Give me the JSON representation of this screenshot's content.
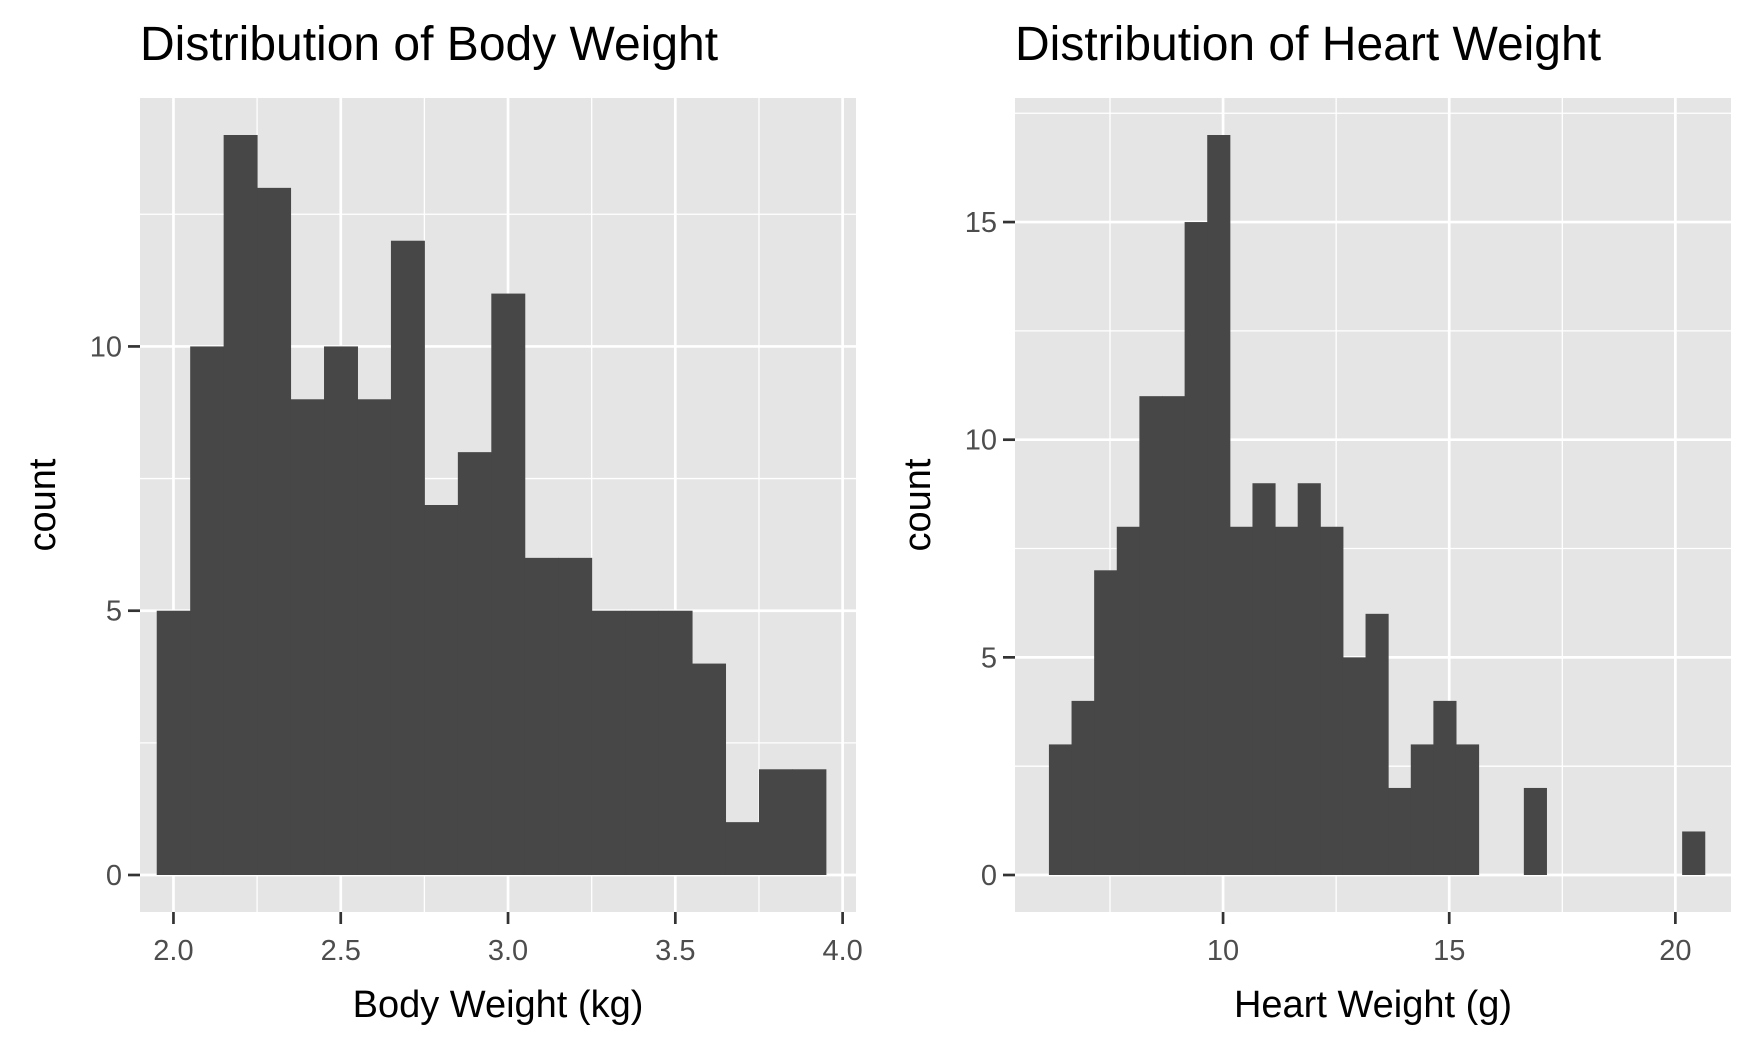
{
  "theme": {
    "panel_background": "#e5e5e5",
    "grid_color": "#ffffff",
    "bar_color": "#474747",
    "tick_color": "#333333",
    "tick_label_color": "#4d4d4d"
  },
  "chart_data": [
    {
      "type": "bar",
      "subtype": "histogram",
      "title": "Distribution of Body Weight",
      "xlabel": "Body Weight (kg)",
      "ylabel": "count",
      "grid": true,
      "xlim": [
        1.9,
        4.04
      ],
      "ylim": [
        -0.7,
        14.7
      ],
      "xticks": [
        2.0,
        2.5,
        3.0,
        3.5,
        4.0
      ],
      "xtick_labels": [
        "2.0",
        "2.5",
        "3.0",
        "3.5",
        "4.0"
      ],
      "yticks": [
        0,
        5,
        10
      ],
      "ytick_labels": [
        "0",
        "5",
        "10"
      ],
      "bin_width": 0.1,
      "bins": [
        {
          "start": 1.95,
          "end": 2.05,
          "count": 5
        },
        {
          "start": 2.05,
          "end": 2.15,
          "count": 10
        },
        {
          "start": 2.15,
          "end": 2.25,
          "count": 14
        },
        {
          "start": 2.25,
          "end": 2.35,
          "count": 13
        },
        {
          "start": 2.35,
          "end": 2.45,
          "count": 9
        },
        {
          "start": 2.45,
          "end": 2.55,
          "count": 10
        },
        {
          "start": 2.55,
          "end": 2.65,
          "count": 9
        },
        {
          "start": 2.65,
          "end": 2.75,
          "count": 12
        },
        {
          "start": 2.75,
          "end": 2.85,
          "count": 7
        },
        {
          "start": 2.85,
          "end": 2.95,
          "count": 8
        },
        {
          "start": 2.95,
          "end": 3.05,
          "count": 11
        },
        {
          "start": 3.05,
          "end": 3.15,
          "count": 6
        },
        {
          "start": 3.15,
          "end": 3.25,
          "count": 6
        },
        {
          "start": 3.25,
          "end": 3.35,
          "count": 5
        },
        {
          "start": 3.35,
          "end": 3.45,
          "count": 5
        },
        {
          "start": 3.45,
          "end": 3.55,
          "count": 5
        },
        {
          "start": 3.55,
          "end": 3.65,
          "count": 4
        },
        {
          "start": 3.65,
          "end": 3.75,
          "count": 1
        },
        {
          "start": 3.75,
          "end": 3.85,
          "count": 2
        },
        {
          "start": 3.85,
          "end": 3.95,
          "count": 2
        }
      ]
    },
    {
      "type": "bar",
      "subtype": "histogram",
      "title": "Distribution of Heart Weight",
      "xlabel": "Heart Weight (g)",
      "ylabel": "count",
      "grid": true,
      "xlim": [
        5.4,
        21.23
      ],
      "ylim": [
        -0.85,
        17.85
      ],
      "xticks": [
        10,
        15,
        20
      ],
      "xtick_labels": [
        "10",
        "15",
        "20"
      ],
      "yticks": [
        0,
        5,
        10,
        15
      ],
      "ytick_labels": [
        "0",
        "5",
        "10",
        "15"
      ],
      "bin_width": 0.5,
      "bins": [
        {
          "start": 6.15,
          "end": 6.65,
          "count": 3
        },
        {
          "start": 6.65,
          "end": 7.15,
          "count": 4
        },
        {
          "start": 7.15,
          "end": 7.65,
          "count": 7
        },
        {
          "start": 7.65,
          "end": 8.15,
          "count": 8
        },
        {
          "start": 8.15,
          "end": 8.65,
          "count": 11
        },
        {
          "start": 8.65,
          "end": 9.15,
          "count": 11
        },
        {
          "start": 9.15,
          "end": 9.65,
          "count": 15
        },
        {
          "start": 9.65,
          "end": 10.15,
          "count": 17
        },
        {
          "start": 10.15,
          "end": 10.65,
          "count": 8
        },
        {
          "start": 10.65,
          "end": 11.15,
          "count": 9
        },
        {
          "start": 11.15,
          "end": 11.65,
          "count": 8
        },
        {
          "start": 11.65,
          "end": 12.15,
          "count": 9
        },
        {
          "start": 12.15,
          "end": 12.65,
          "count": 8
        },
        {
          "start": 12.65,
          "end": 13.15,
          "count": 5
        },
        {
          "start": 13.15,
          "end": 13.65,
          "count": 6
        },
        {
          "start": 13.65,
          "end": 14.15,
          "count": 2
        },
        {
          "start": 14.15,
          "end": 14.65,
          "count": 3
        },
        {
          "start": 14.65,
          "end": 15.15,
          "count": 4
        },
        {
          "start": 15.15,
          "end": 15.65,
          "count": 3
        },
        {
          "start": 15.65,
          "end": 16.15,
          "count": 0
        },
        {
          "start": 16.15,
          "end": 16.65,
          "count": 0
        },
        {
          "start": 16.65,
          "end": 17.15,
          "count": 2
        },
        {
          "start": 17.15,
          "end": 17.65,
          "count": 0
        },
        {
          "start": 17.65,
          "end": 18.15,
          "count": 0
        },
        {
          "start": 18.15,
          "end": 18.65,
          "count": 0
        },
        {
          "start": 18.65,
          "end": 19.15,
          "count": 0
        },
        {
          "start": 19.15,
          "end": 19.65,
          "count": 0
        },
        {
          "start": 19.65,
          "end": 20.15,
          "count": 0
        },
        {
          "start": 20.15,
          "end": 20.65,
          "count": 1
        }
      ]
    }
  ]
}
